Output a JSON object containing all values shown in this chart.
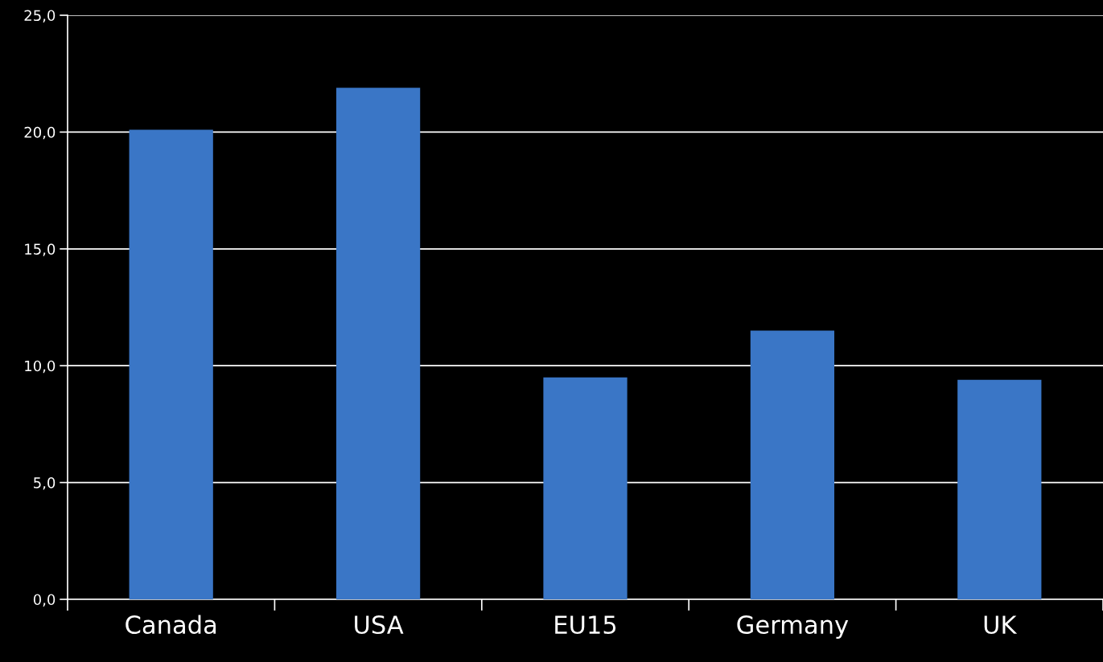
{
  "chart_data": {
    "type": "bar",
    "categories": [
      "Canada",
      "USA",
      "EU15",
      "Germany",
      "UK"
    ],
    "values": [
      20.1,
      21.9,
      9.5,
      11.5,
      9.4
    ],
    "color": "#3a76c6",
    "ylim": [
      0,
      25
    ],
    "yticks": [
      {
        "value": 0,
        "label": "0,0"
      },
      {
        "value": 5,
        "label": "5,0"
      },
      {
        "value": 10,
        "label": "10,0"
      },
      {
        "value": 15,
        "label": "15,0"
      },
      {
        "value": 20,
        "label": "20,0"
      },
      {
        "value": 25,
        "label": "25,0"
      }
    ],
    "grid": "y"
  }
}
